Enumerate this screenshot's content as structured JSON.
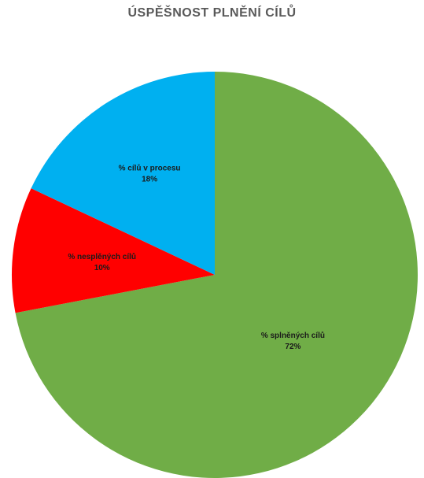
{
  "chart_data": {
    "type": "pie",
    "title": "ÚSPĚŠNOST PLNĚNÍ CÍLŮ",
    "start_angle_deg": 0,
    "direction": "clockwise",
    "slices": [
      {
        "label": "% splněných cílů",
        "value": 72,
        "display": "72%",
        "color": "#70ad47"
      },
      {
        "label": "% nesplěných cílů",
        "value": 10,
        "display": "10%",
        "color": "#ff0000"
      },
      {
        "label": "% cílů v procesu",
        "value": 18,
        "display": "18%",
        "color": "#00b0f0"
      }
    ],
    "legend": "none",
    "data_labels": "inside"
  }
}
